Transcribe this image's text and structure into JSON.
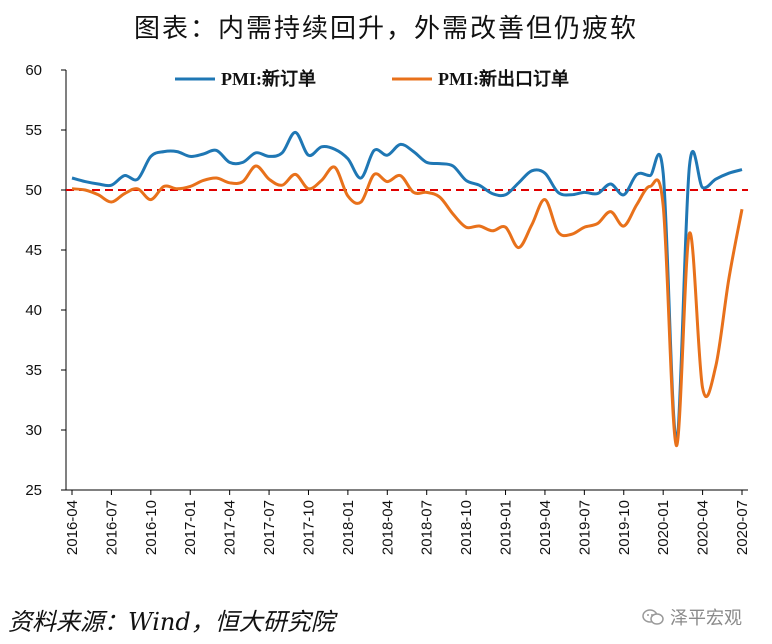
{
  "title": "图表：内需持续回升，外需改善但仍疲软",
  "source": "资料来源：Wind，恒大研究院",
  "watermark": "泽平宏观",
  "colors": {
    "series1": "#1f77b4",
    "series2": "#e8711b",
    "reference": "#e00000",
    "axis": "#000000"
  },
  "chart_data": {
    "type": "line",
    "title": "图表：内需持续回升，外需改善但仍疲软",
    "ylim": [
      25,
      60
    ],
    "yticks": [
      25,
      30,
      35,
      40,
      45,
      50,
      55,
      60
    ],
    "xtick_labels": [
      "2016-04",
      "2016-07",
      "2016-10",
      "2017-01",
      "2017-04",
      "2017-07",
      "2017-10",
      "2018-01",
      "2018-04",
      "2018-07",
      "2018-10",
      "2019-01",
      "2019-04",
      "2019-07",
      "2019-10",
      "2020-01",
      "2020-04",
      "2020-07"
    ],
    "legend_position": "top",
    "grid": false,
    "reference_line": {
      "y": 50,
      "style": "dashed",
      "color": "#e00000"
    },
    "x": [
      "2016-04",
      "2016-05",
      "2016-06",
      "2016-07",
      "2016-08",
      "2016-09",
      "2016-10",
      "2016-11",
      "2016-12",
      "2017-01",
      "2017-02",
      "2017-03",
      "2017-04",
      "2017-05",
      "2017-06",
      "2017-07",
      "2017-08",
      "2017-09",
      "2017-10",
      "2017-11",
      "2017-12",
      "2018-01",
      "2018-02",
      "2018-03",
      "2018-04",
      "2018-05",
      "2018-06",
      "2018-07",
      "2018-08",
      "2018-09",
      "2018-10",
      "2018-11",
      "2018-12",
      "2019-01",
      "2019-02",
      "2019-03",
      "2019-04",
      "2019-05",
      "2019-06",
      "2019-07",
      "2019-08",
      "2019-09",
      "2019-10",
      "2019-11",
      "2019-12",
      "2020-01",
      "2020-02",
      "2020-03",
      "2020-04",
      "2020-05",
      "2020-06",
      "2020-07"
    ],
    "series": [
      {
        "name": "PMI:新订单",
        "color": "#1f77b4",
        "values": [
          51.0,
          50.7,
          50.5,
          50.4,
          51.2,
          50.9,
          52.8,
          53.2,
          53.2,
          52.8,
          53.0,
          53.3,
          52.3,
          52.3,
          53.1,
          52.8,
          53.1,
          54.8,
          52.9,
          53.6,
          53.4,
          52.6,
          51.0,
          53.3,
          52.9,
          53.8,
          53.2,
          52.3,
          52.2,
          52.0,
          50.8,
          50.4,
          49.7,
          49.6,
          50.6,
          51.6,
          51.4,
          49.8,
          49.6,
          49.8,
          49.7,
          50.5,
          49.6,
          51.3,
          51.2,
          51.4,
          29.3,
          52.0,
          50.2,
          50.9,
          51.4,
          51.7
        ]
      },
      {
        "name": "PMI:新出口订单",
        "color": "#e8711b",
        "values": [
          50.1,
          50.0,
          49.6,
          49.0,
          49.7,
          50.1,
          49.2,
          50.3,
          50.1,
          50.3,
          50.8,
          51.0,
          50.6,
          50.7,
          52.0,
          50.9,
          50.4,
          51.3,
          50.1,
          50.8,
          51.9,
          49.5,
          49.0,
          51.3,
          50.7,
          51.2,
          49.8,
          49.8,
          49.4,
          48.0,
          46.9,
          47.0,
          46.6,
          46.9,
          45.2,
          47.1,
          49.2,
          46.5,
          46.3,
          46.9,
          47.2,
          48.2,
          47.0,
          48.8,
          50.3,
          48.7,
          28.7,
          46.4,
          33.5,
          35.3,
          42.6,
          48.4
        ]
      }
    ]
  }
}
